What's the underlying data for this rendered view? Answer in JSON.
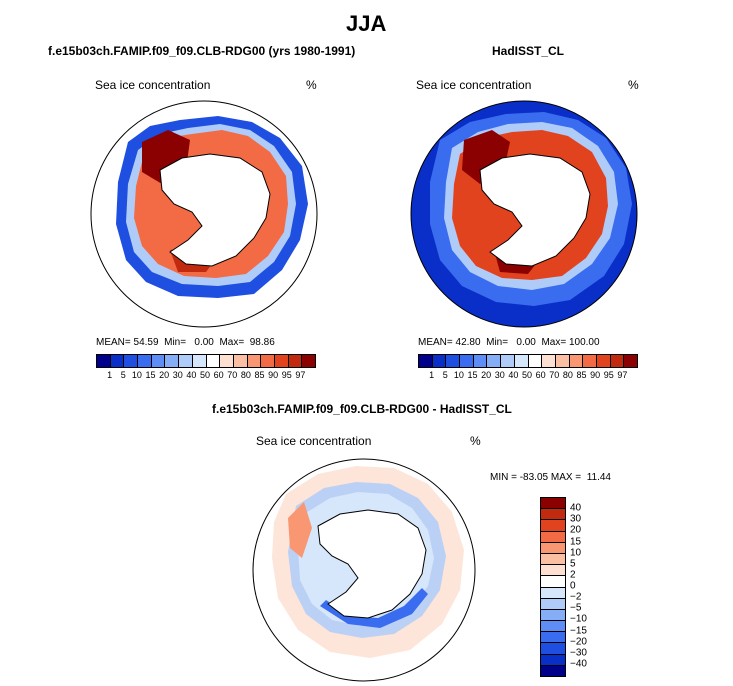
{
  "title": "JJA",
  "panel_left": {
    "header": "f.e15b03ch.FAMIP.f09_f09.CLB-RDG00 (yrs 1980-1991)",
    "field_label": "Sea ice concentration",
    "units": "%",
    "mean_label": "MEAN=",
    "mean_value": "54.59",
    "min_label": "Min=",
    "min_value": "0.00",
    "max_label": "Max=",
    "max_value": "98.86"
  },
  "panel_right": {
    "header": "HadISST_CL",
    "field_label": "Sea ice concentration",
    "units": "%",
    "mean_label": "MEAN=",
    "mean_value": "42.80",
    "min_label": "Min=",
    "min_value": "0.00",
    "max_label": "Max=",
    "max_value": "100.00"
  },
  "panel_diff": {
    "header": "f.e15b03ch.FAMIP.f09_f09.CLB-RDG00 - HadISST_CL",
    "field_label": "Sea ice concentration",
    "units": "%",
    "minmax_text": "MIN = -83.05 MAX =  11.44"
  },
  "colorbar_abs": {
    "ticks": [
      "1",
      "5",
      "10",
      "15",
      "20",
      "30",
      "40",
      "50",
      "60",
      "70",
      "80",
      "85",
      "90",
      "95",
      "97"
    ],
    "colors": [
      "#00008b",
      "#0a2fc8",
      "#1f4fe0",
      "#3a6cf0",
      "#5e8ef5",
      "#86aef7",
      "#afccf9",
      "#d6e6fb",
      "#ffffff",
      "#fde0d2",
      "#fbbfa4",
      "#f89772",
      "#f26b45",
      "#e2431f",
      "#c22a10",
      "#8b0000"
    ]
  },
  "colorbar_diff": {
    "ticks": [
      "40",
      "30",
      "20",
      "15",
      "10",
      "5",
      "2",
      "0",
      "−2",
      "−5",
      "−10",
      "−15",
      "−20",
      "−30",
      "−40"
    ],
    "colors": [
      "#8b0000",
      "#c22a10",
      "#e2431f",
      "#f26b45",
      "#f89772",
      "#fbbfa4",
      "#fde0d2",
      "#ffffff",
      "#d6e6fb",
      "#afccf9",
      "#86aef7",
      "#5e8ef5",
      "#3a6cf0",
      "#1f4fe0",
      "#0a2fc8",
      "#00008b"
    ]
  }
}
